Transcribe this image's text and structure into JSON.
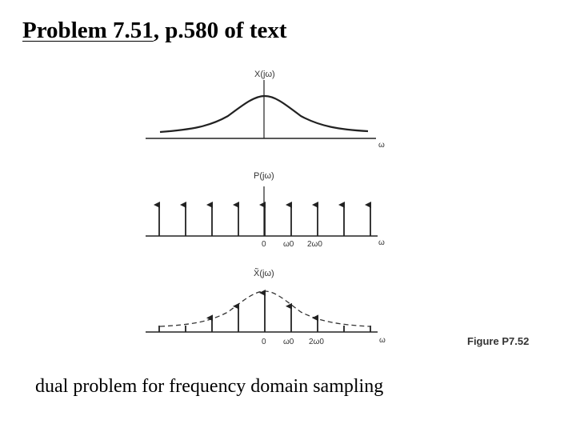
{
  "slide": {
    "title_underlined": "Problem 7.51",
    "title_rest": ", p.580 of text",
    "caption": "dual problem for frequency domain sampling",
    "figure_label": "Figure P7.52"
  },
  "figure": {
    "top_plot": {
      "ylabel": "X(jω)",
      "xlabel": "ω"
    },
    "middle_plot": {
      "ylabel": "P(jω)",
      "xlabel": "ω",
      "tick_zero": "0",
      "tick_w0": "ω0",
      "tick_2w0": "2ω0"
    },
    "bottom_plot": {
      "ylabel": "X̃(jω)",
      "xlabel": "ω",
      "tick_zero": "0",
      "tick_w0": "ω0",
      "tick_2w0": "2ω0"
    }
  }
}
